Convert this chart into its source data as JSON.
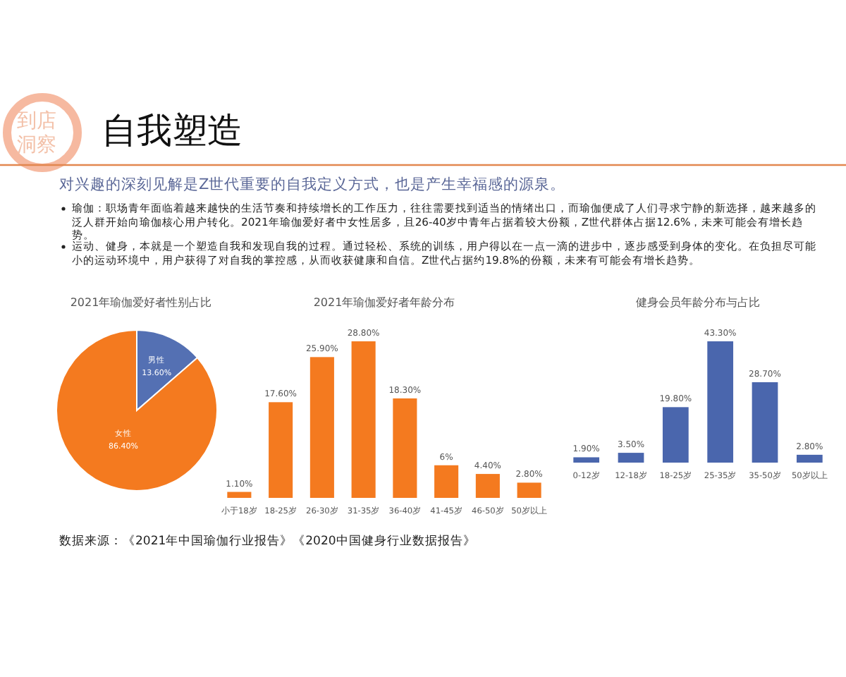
{
  "chart_data": [
    {
      "type": "other",
      "title": "自我塑造",
      "subtitle": "对兴趣的深刻见解是Z世代重要的自我定义方式，也是产生幸福感的源泉。",
      "annotations": [
        "到店洞察",
        "瑜伽：职场青年面临着越来越快的生活节奏和持续增长的工作压力，往往需要找到适当的情绪出口，而瑜伽便成了人们寻求宁静的新选择，越来越多的泛人群开始向瑜伽核心用户转化。2021年瑜伽爱好者中女性居多，且26-40岁中青年占据着较大份额，Z世代群体占据12.6%，未来可能会有增长趋势。",
        "运动、健身，本就是一个塑造自我和发现自我的过程。通过轻松、系统的训练，用户得以在一点一滴的进步中，逐步感受到身体的变化。在负担尽可能小的运动环境中，用户获得了对自我的掌控感，从而收获健康和自信。Z世代占据约19.8%的份额，未来有可能会有增长趋势。",
        "数据来源：《2021年中国瑜伽行业报告》《2020中国健身行业数据报告》"
      ]
    },
    {
      "type": "pie",
      "title": "2021年瑜伽爱好者性别占比",
      "categories": [
        "男性",
        "女性"
      ],
      "values": [
        13.6,
        86.4
      ],
      "colors": [
        "#5470b3",
        "#f47a1f"
      ],
      "value_labels": [
        "13.60%",
        "86.40%"
      ]
    },
    {
      "type": "bar",
      "title": "2021年瑜伽爱好者年龄分布",
      "categories": [
        "小于18岁",
        "18-25岁",
        "26-30岁",
        "31-35岁",
        "36-40岁",
        "41-45岁",
        "46-50岁",
        "50岁以上"
      ],
      "values": [
        1.1,
        17.6,
        25.9,
        28.8,
        18.3,
        6,
        4.4,
        2.8
      ],
      "color": "#f47a1f",
      "value_labels": [
        "1.10%",
        "17.60%",
        "25.90%",
        "28.80%",
        "18.30%",
        "6%",
        "4.40%",
        "2.80%"
      ]
    },
    {
      "type": "bar",
      "title": "健身会员年龄分布与占比",
      "categories": [
        "0-12岁",
        "12-18岁",
        "18-25岁",
        "25-35岁",
        "35-50岁",
        "50岁以上"
      ],
      "values": [
        1.9,
        3.5,
        19.8,
        43.3,
        28.7,
        2.8
      ],
      "color": "#4a66ad",
      "value_labels": [
        "1.90%",
        "3.50%",
        "19.80%",
        "43.30%",
        "28.70%",
        "2.80%"
      ]
    }
  ]
}
